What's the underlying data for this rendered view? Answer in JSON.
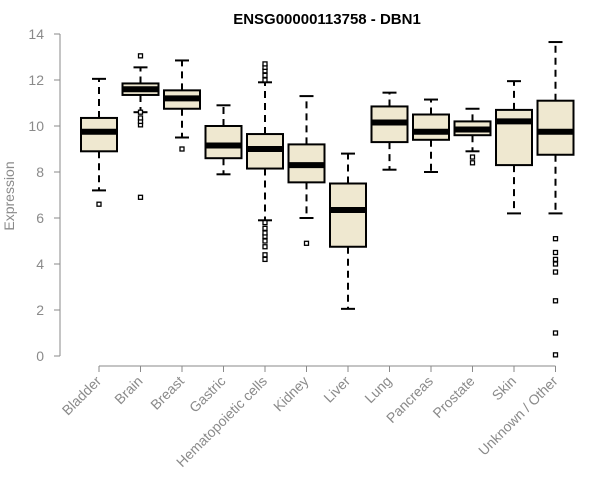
{
  "chart_data": {
    "type": "boxplot",
    "title": "ENSG00000113758 - DBN1",
    "xlabel": "",
    "ylabel": "Expression",
    "ylim": [
      0,
      14
    ],
    "yticks": [
      0,
      2,
      4,
      6,
      8,
      10,
      12,
      14
    ],
    "box_fill": "#efe8d0",
    "categories": [
      "Bladder",
      "Brain",
      "Breast",
      "Gastric",
      "Hematopoietic cells",
      "Kidney",
      "Liver",
      "Lung",
      "Pancreas",
      "Prostate",
      "Skin",
      "Unknown / Other"
    ],
    "boxes": [
      {
        "category": "Bladder",
        "whisker_low": 7.2,
        "q1": 8.9,
        "median": 9.75,
        "q3": 10.35,
        "whisker_high": 12.05,
        "outliers": [
          6.6
        ]
      },
      {
        "category": "Brain",
        "whisker_low": 10.6,
        "q1": 11.35,
        "median": 11.6,
        "q3": 11.85,
        "whisker_high": 12.55,
        "outliers": [
          6.9,
          10.05,
          10.2,
          10.35,
          10.6,
          13.05
        ]
      },
      {
        "category": "Breast",
        "whisker_low": 9.5,
        "q1": 10.75,
        "median": 11.2,
        "q3": 11.55,
        "whisker_high": 12.85,
        "outliers": [
          9.0
        ]
      },
      {
        "category": "Gastric",
        "whisker_low": 7.9,
        "q1": 8.6,
        "median": 9.15,
        "q3": 10.0,
        "whisker_high": 10.9,
        "outliers": []
      },
      {
        "category": "Hematopoietic cells",
        "whisker_low": 5.9,
        "q1": 8.15,
        "median": 9.0,
        "q3": 9.65,
        "whisker_high": 11.9,
        "outliers": [
          4.2,
          4.4,
          4.75,
          5.0,
          5.2,
          5.35,
          5.55,
          5.8,
          12.0,
          12.2,
          12.4,
          12.55,
          12.7
        ]
      },
      {
        "category": "Kidney",
        "whisker_low": 6.0,
        "q1": 7.55,
        "median": 8.3,
        "q3": 9.2,
        "whisker_high": 11.3,
        "outliers": [
          4.9
        ]
      },
      {
        "category": "Liver",
        "whisker_low": 2.05,
        "q1": 4.75,
        "median": 6.35,
        "q3": 7.5,
        "whisker_high": 8.8,
        "outliers": []
      },
      {
        "category": "Lung",
        "whisker_low": 8.1,
        "q1": 9.3,
        "median": 10.15,
        "q3": 10.85,
        "whisker_high": 11.45,
        "outliers": []
      },
      {
        "category": "Pancreas",
        "whisker_low": 8.0,
        "q1": 9.4,
        "median": 9.75,
        "q3": 10.5,
        "whisker_high": 11.15,
        "outliers": []
      },
      {
        "category": "Prostate",
        "whisker_low": 8.9,
        "q1": 9.6,
        "median": 9.85,
        "q3": 10.2,
        "whisker_high": 10.75,
        "outliers": [
          8.4,
          8.65
        ]
      },
      {
        "category": "Skin",
        "whisker_low": 6.2,
        "q1": 8.3,
        "median": 10.2,
        "q3": 10.7,
        "whisker_high": 11.95,
        "outliers": []
      },
      {
        "category": "Unknown / Other",
        "whisker_low": 6.2,
        "q1": 8.75,
        "median": 9.75,
        "q3": 11.1,
        "whisker_high": 13.65,
        "outliers": [
          0.05,
          1.0,
          2.4,
          3.65,
          4.0,
          4.2,
          4.5,
          5.1
        ]
      }
    ]
  }
}
